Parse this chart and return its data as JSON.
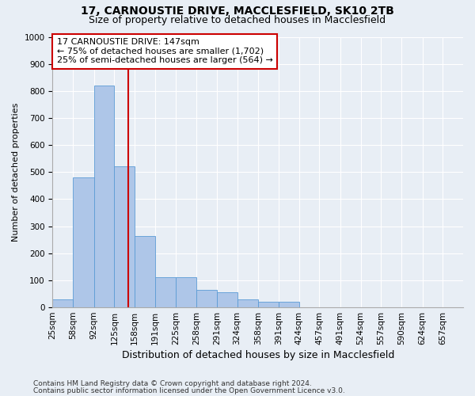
{
  "title1": "17, CARNOUSTIE DRIVE, MACCLESFIELD, SK10 2TB",
  "title2": "Size of property relative to detached houses in Macclesfield",
  "xlabel": "Distribution of detached houses by size in Macclesfield",
  "ylabel": "Number of detached properties",
  "bins": [
    25,
    58,
    92,
    125,
    158,
    191,
    225,
    258,
    291,
    324,
    358,
    391,
    424,
    457,
    491,
    524,
    557,
    590,
    624,
    657,
    690
  ],
  "counts": [
    30,
    480,
    820,
    520,
    265,
    110,
    110,
    65,
    55,
    30,
    20,
    20,
    0,
    0,
    0,
    0,
    0,
    0,
    0,
    0
  ],
  "bar_color": "#aec6e8",
  "bar_edge_color": "#5b9bd5",
  "vline_x": 147,
  "vline_color": "#cc0000",
  "annotation_line1": "17 CARNOUSTIE DRIVE: 147sqm",
  "annotation_line2": "← 75% of detached houses are smaller (1,702)",
  "annotation_line3": "25% of semi-detached houses are larger (564) →",
  "annotation_box_color": "#ffffff",
  "annotation_box_edge": "#cc0000",
  "ylim": [
    0,
    1000
  ],
  "yticks": [
    0,
    100,
    200,
    300,
    400,
    500,
    600,
    700,
    800,
    900,
    1000
  ],
  "background_color": "#e8eef5",
  "footer1": "Contains HM Land Registry data © Crown copyright and database right 2024.",
  "footer2": "Contains public sector information licensed under the Open Government Licence v3.0.",
  "title1_fontsize": 10,
  "title2_fontsize": 9,
  "xlabel_fontsize": 9,
  "ylabel_fontsize": 8,
  "tick_fontsize": 7.5,
  "annotation_fontsize": 8
}
